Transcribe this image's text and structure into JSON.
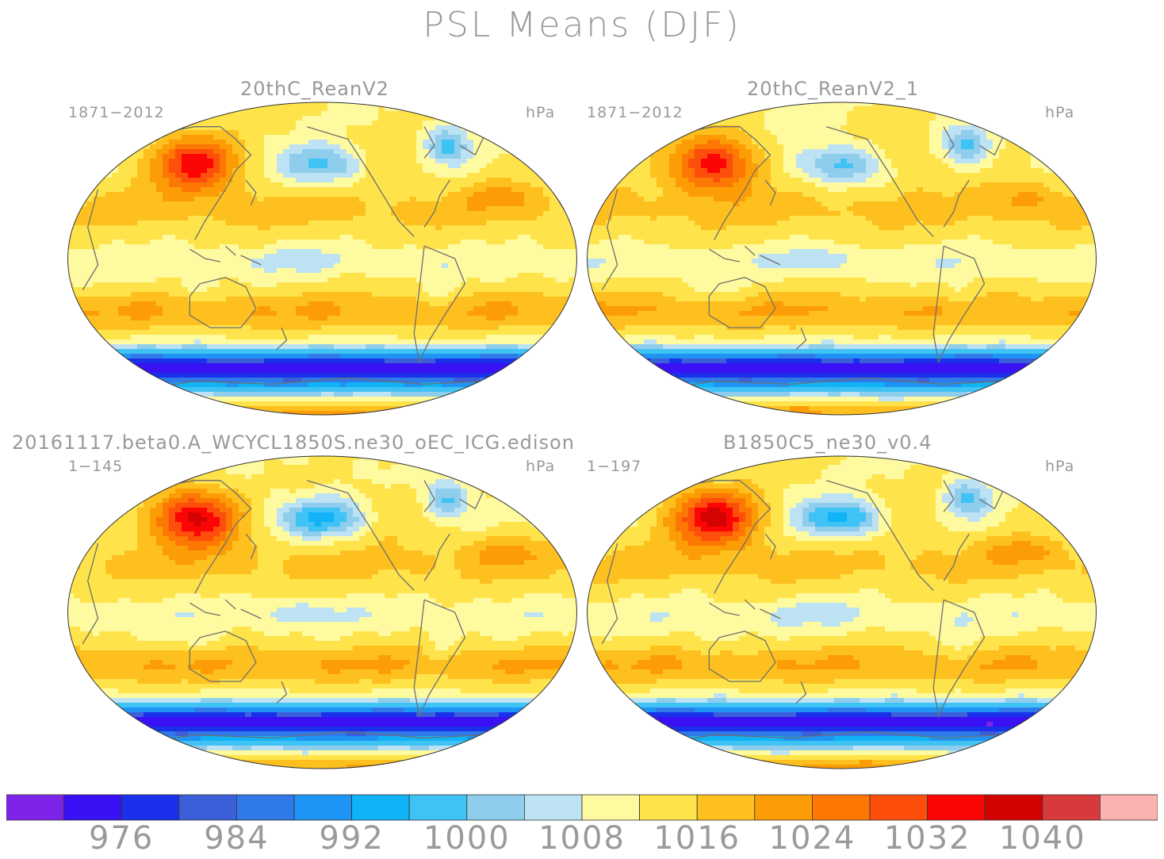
{
  "title": "PSL Means (DJF)",
  "panels": [
    {
      "name": "20thC_ReanV2",
      "period": "1871−2012",
      "units": "hPa"
    },
    {
      "name": "20thC_ReanV2_1",
      "period": "1871−2012",
      "units": "hPa"
    },
    {
      "name": "20161117.beta0.A_WCYCL1850S.ne30_oEC_ICG.edison",
      "period": "1−145",
      "units": "hPa"
    },
    {
      "name": "B1850C5_ne30_v0.4",
      "period": "1−197",
      "units": "hPa"
    }
  ],
  "colorbar": {
    "colors": [
      "#7e24e8",
      "#3a10f5",
      "#1a30ea",
      "#3a5fd8",
      "#2f79e8",
      "#1e94f4",
      "#11b3f7",
      "#3fc2f4",
      "#8ecdec",
      "#bde2f4",
      "#fefaa0",
      "#fee34a",
      "#fdc01f",
      "#fd9d05",
      "#fc7703",
      "#fd4e0b",
      "#fb0505",
      "#d30302",
      "#d63a3a",
      "#fdb2b2"
    ],
    "labels": [
      "976",
      "984",
      "992",
      "1000",
      "1008",
      "1016",
      "1024",
      "1032",
      "1040"
    ]
  },
  "chart_data": {
    "type": "heatmap",
    "title": "PSL Means (DJF)",
    "variable": "PSL",
    "season": "DJF",
    "units": "hPa",
    "projection": "Robinson-like global map",
    "contour_levels": [
      972,
      976,
      980,
      984,
      988,
      992,
      996,
      1000,
      1004,
      1008,
      1012,
      1016,
      1020,
      1024,
      1028,
      1032,
      1036,
      1040,
      1044
    ],
    "series": [
      {
        "name": "20thC_ReanV2",
        "period": "1871-2012"
      },
      {
        "name": "20thC_ReanV2_1",
        "period": "1871-2012"
      },
      {
        "name": "20161117.beta0.A_WCYCL1850S.ne30_oEC_ICG.edison",
        "period": "1-145"
      },
      {
        "name": "B1850C5_ne30_v0.4",
        "period": "1-197"
      }
    ]
  }
}
